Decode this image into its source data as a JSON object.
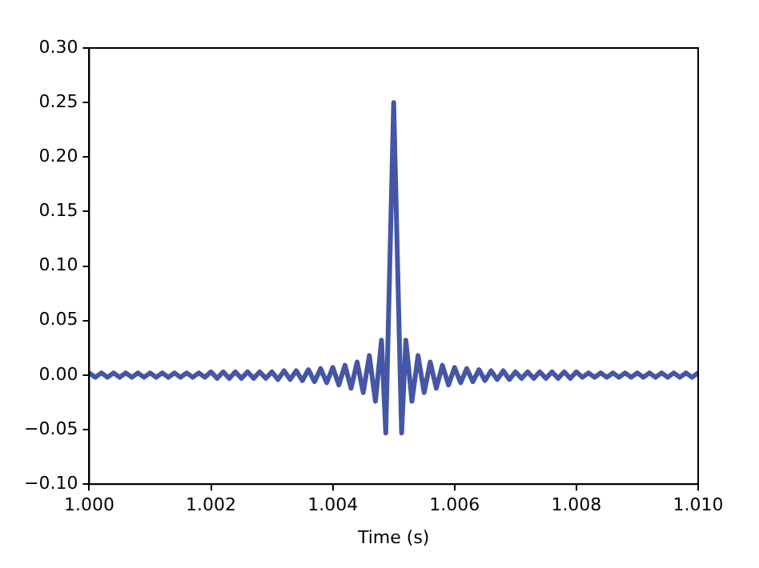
{
  "chart_data": {
    "type": "line",
    "xlabel": "Time (s)",
    "x": [
      1.0,
      1.0001,
      1.0002,
      1.0003,
      1.0004,
      1.0005,
      1.0006,
      1.0007,
      1.0008,
      1.0009,
      1.001,
      1.0011,
      1.0012,
      1.0013,
      1.0014,
      1.0015,
      1.0016,
      1.0017,
      1.0018,
      1.0019,
      1.002,
      1.0021,
      1.0022,
      1.0023,
      1.0024,
      1.0025,
      1.0026,
      1.0027,
      1.0028,
      1.0029,
      1.003,
      1.0031,
      1.0032,
      1.0033,
      1.0034,
      1.0035,
      1.0036,
      1.0037,
      1.0038,
      1.0039,
      1.004,
      1.0041,
      1.0042,
      1.0043,
      1.0044,
      1.0045,
      1.0046,
      1.0047,
      1.0048,
      1.00487,
      1.005,
      1.00513,
      1.0052,
      1.0053,
      1.0054,
      1.0055,
      1.0056,
      1.0057,
      1.0058,
      1.0059,
      1.006,
      1.0061,
      1.0062,
      1.0063,
      1.0064,
      1.0065,
      1.0066,
      1.0067,
      1.0068,
      1.0069,
      1.007,
      1.0071,
      1.0072,
      1.0073,
      1.0074,
      1.0075,
      1.0076,
      1.0077,
      1.0078,
      1.0079,
      1.008,
      1.0081,
      1.0082,
      1.0083,
      1.0084,
      1.0085,
      1.0086,
      1.0087,
      1.0088,
      1.0089,
      1.009,
      1.0091,
      1.0092,
      1.0093,
      1.0094,
      1.0095,
      1.0096,
      1.0097,
      1.0098,
      1.0099,
      1.01
    ],
    "series": [
      {
        "color": "#4656a6",
        "values": [
          0.002,
          -0.002,
          0.002,
          -0.002,
          0.002,
          -0.002,
          0.002,
          -0.002,
          0.002,
          -0.002,
          0.002,
          -0.002,
          0.002,
          -0.002,
          0.002,
          -0.002,
          0.002,
          -0.002,
          0.002,
          -0.002,
          0.003,
          -0.003,
          0.003,
          -0.003,
          0.003,
          -0.003,
          0.003,
          -0.003,
          0.003,
          -0.003,
          0.003,
          -0.004,
          0.004,
          -0.004,
          0.004,
          -0.005,
          0.005,
          -0.006,
          0.006,
          -0.007,
          0.007,
          -0.009,
          0.009,
          -0.012,
          0.012,
          -0.016,
          0.018,
          -0.024,
          0.032,
          -0.053,
          0.25,
          -0.053,
          0.032,
          -0.024,
          0.018,
          -0.016,
          0.012,
          -0.012,
          0.009,
          -0.009,
          0.007,
          -0.007,
          0.006,
          -0.006,
          0.005,
          -0.005,
          0.004,
          -0.004,
          0.004,
          -0.004,
          0.003,
          -0.003,
          0.003,
          -0.003,
          0.003,
          -0.003,
          0.003,
          -0.003,
          0.003,
          -0.003,
          0.003,
          -0.002,
          0.002,
          -0.002,
          0.002,
          -0.002,
          0.002,
          -0.002,
          0.002,
          -0.002,
          0.002,
          -0.002,
          0.002,
          -0.002,
          0.002,
          -0.002,
          0.002,
          -0.002,
          0.002,
          -0.002,
          0.002
        ]
      }
    ],
    "xlim": [
      1.0,
      1.01
    ],
    "xticks": [
      {
        "value": 1.0,
        "label": "1.000"
      },
      {
        "value": 1.002,
        "label": "1.002"
      },
      {
        "value": 1.004,
        "label": "1.004"
      },
      {
        "value": 1.006,
        "label": "1.006"
      },
      {
        "value": 1.008,
        "label": "1.008"
      },
      {
        "value": 1.01,
        "label": "1.010"
      }
    ],
    "ylim": [
      -0.1,
      0.3
    ],
    "yticks": [
      {
        "value": -0.1,
        "label": "−0.10"
      },
      {
        "value": -0.05,
        "label": "−0.05"
      },
      {
        "value": 0,
        "label": "0.00"
      },
      {
        "value": 0.05,
        "label": "0.05"
      },
      {
        "value": 0.1,
        "label": "0.10"
      },
      {
        "value": 0.15,
        "label": "0.15"
      },
      {
        "value": 0.2,
        "label": "0.20"
      },
      {
        "value": 0.25,
        "label": "0.25"
      },
      {
        "value": 0.3,
        "label": "0.30"
      }
    ],
    "grid": false,
    "legend": false,
    "marker": "none",
    "line_style": "solid"
  }
}
